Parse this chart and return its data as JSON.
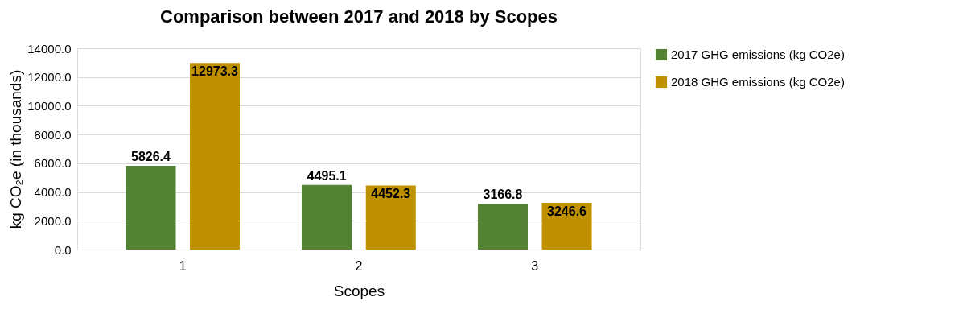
{
  "chart_data": {
    "type": "bar",
    "title": "Comparison between 2017 and 2018 by Scopes",
    "xlabel": "Scopes",
    "ylabel": "kg CO₂e (in thousands)",
    "categories": [
      "1",
      "2",
      "3"
    ],
    "series": [
      {
        "name": "2017 GHG emissions (kg CO2e)",
        "color": "#548235",
        "values": [
          5826.4,
          4495.1,
          3166.8
        ]
      },
      {
        "name": "2018 GHG emissions (kg CO2e)",
        "color": "#bf9000",
        "values": [
          12973.3,
          4452.3,
          3246.6
        ]
      }
    ],
    "ylim": [
      0,
      14000
    ],
    "yticks": [
      {
        "value": 0,
        "label": "0.0"
      },
      {
        "value": 2000,
        "label": "2000.0"
      },
      {
        "value": 4000,
        "label": "4000.0"
      },
      {
        "value": 6000,
        "label": "6000.0"
      },
      {
        "value": 8000,
        "label": "8000.0"
      },
      {
        "value": 10000,
        "label": "10000.0"
      },
      {
        "value": 12000,
        "label": "12000.0"
      },
      {
        "value": 14000,
        "label": "14000.0"
      }
    ],
    "grid": "y",
    "legend": "right",
    "data_labels": true
  }
}
